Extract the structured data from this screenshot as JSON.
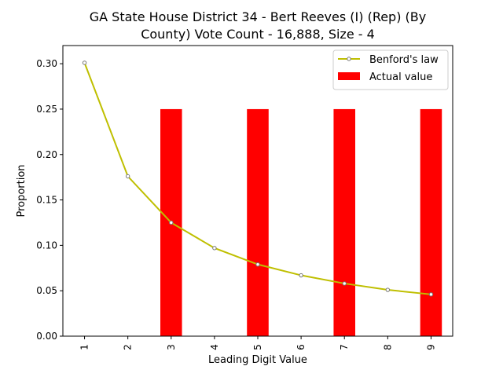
{
  "chart_data": {
    "type": "bar",
    "title_lines": [
      "GA State House District 34 - Bert Reeves (I) (Rep) (By",
      "County) Vote Count - 16,888, Size - 4"
    ],
    "xlabel": "Leading Digit Value",
    "ylabel": "Proportion",
    "categories": [
      "1",
      "2",
      "3",
      "4",
      "5",
      "6",
      "7",
      "8",
      "9"
    ],
    "x": [
      1,
      2,
      3,
      4,
      5,
      6,
      7,
      8,
      9
    ],
    "ylim": [
      0,
      0.32
    ],
    "yticks": [
      "0.00",
      "0.05",
      "0.10",
      "0.15",
      "0.20",
      "0.25",
      "0.30"
    ],
    "grid": false,
    "legend_position": "top-right",
    "series": [
      {
        "name": "Benford's law",
        "type": "line",
        "color": "#bfbf00",
        "values": [
          0.301,
          0.176,
          0.125,
          0.097,
          0.079,
          0.067,
          0.058,
          0.051,
          0.046
        ]
      },
      {
        "name": "Actual value",
        "type": "bar",
        "color": "#ff0000",
        "values": [
          0,
          0,
          0.25,
          0,
          0.25,
          0,
          0.25,
          0,
          0.25
        ]
      }
    ]
  }
}
